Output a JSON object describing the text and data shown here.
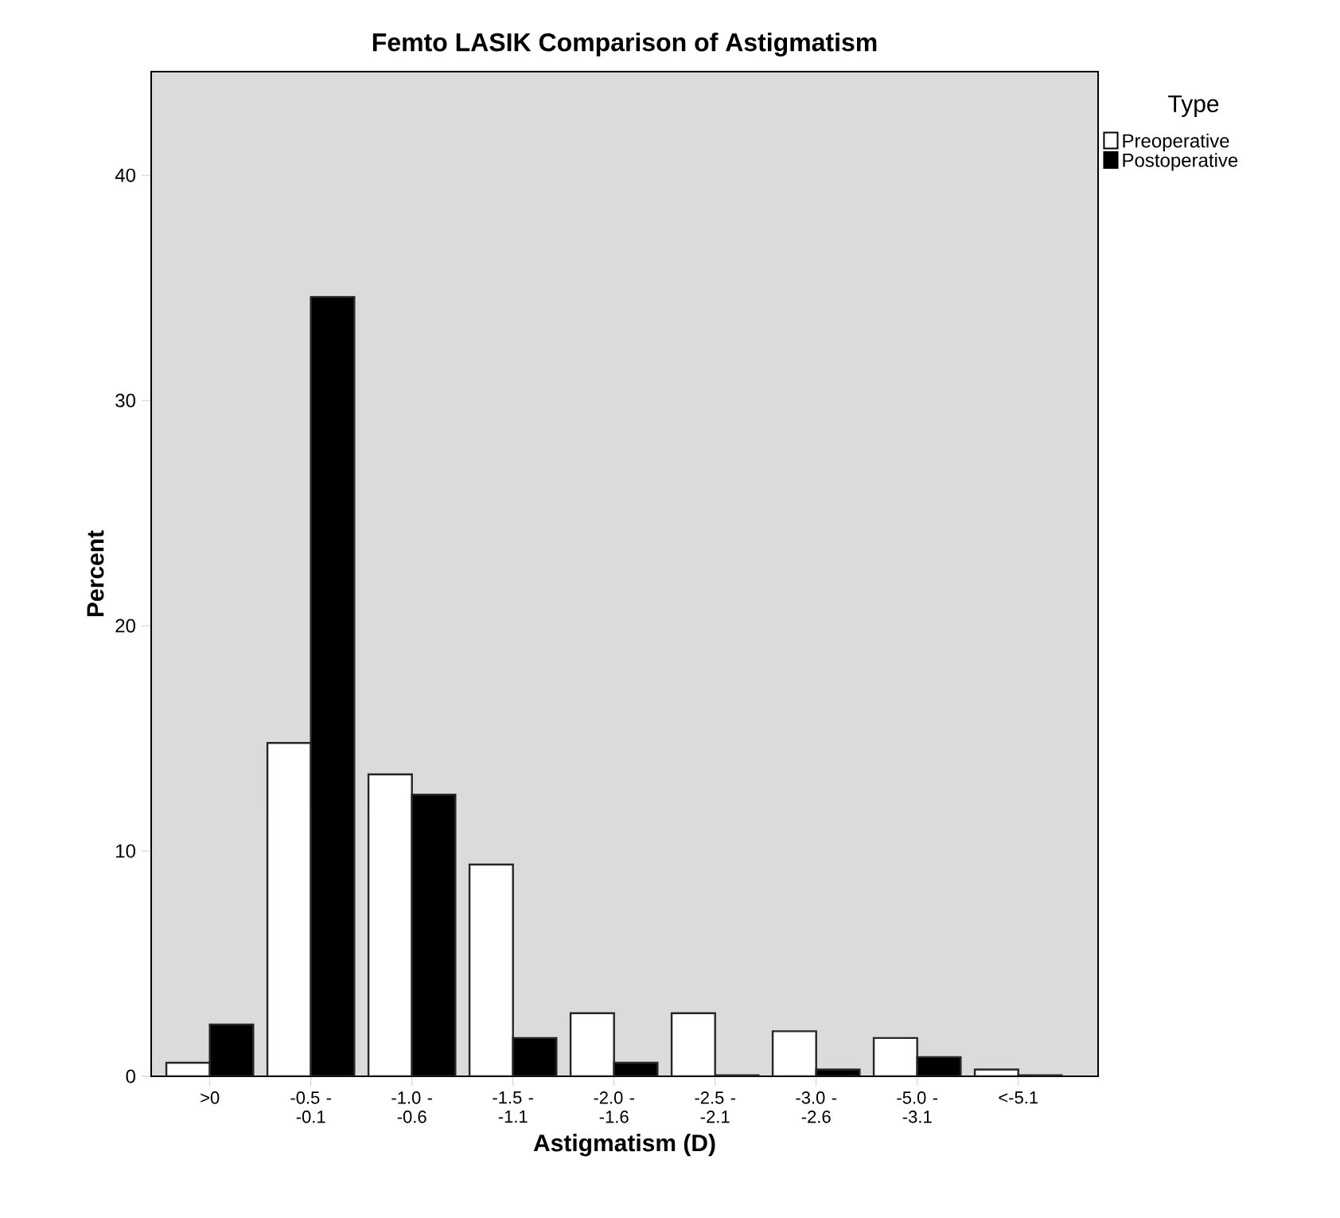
{
  "chart_data": {
    "type": "bar",
    "title": "Femto LASIK Comparison of Astigmatism",
    "xlabel": "Astigmatism (D)",
    "ylabel": "Percent",
    "legend_title": "Type",
    "legend": "top right",
    "categories": [
      ">0",
      "-0.5 - -0.1",
      "-1.0 - -0.6",
      "-1.5 - -1.1",
      "-2.0 - -1.6",
      "-2.5 - -2.1",
      "-3.0 - -2.6",
      "-5.0 - -3.1",
      "<-5.1"
    ],
    "series": [
      {
        "name": "Preoperative",
        "color": "#ffffff",
        "values": [
          0.6,
          14.8,
          13.4,
          9.4,
          2.8,
          2.8,
          2.0,
          1.7,
          0.3
        ]
      },
      {
        "name": "Postoperative",
        "color": "#000000",
        "values": [
          2.3,
          34.6,
          12.5,
          1.7,
          0.6,
          0.05,
          0.3,
          0.85,
          0.05
        ]
      }
    ],
    "ylim": [
      0,
      44.6
    ],
    "yticks": [
      0,
      10,
      20,
      30,
      40
    ],
    "grid": false
  }
}
